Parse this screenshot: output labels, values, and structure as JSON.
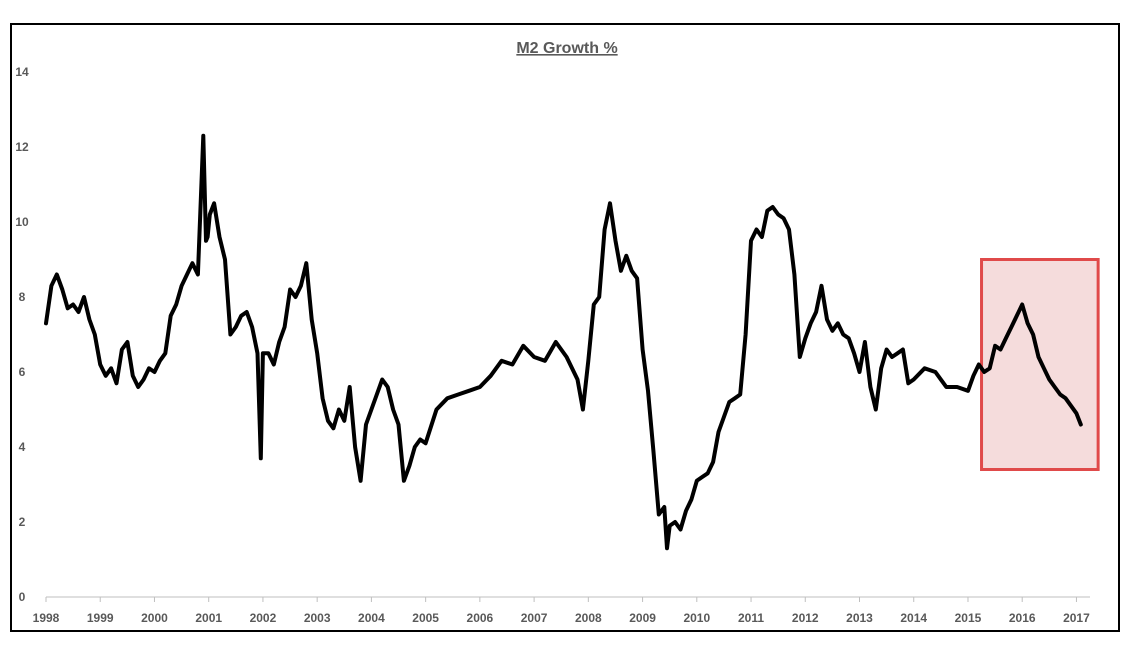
{
  "chart_data": {
    "type": "line",
    "title": "M2 Growth %",
    "xlabel": "",
    "ylabel": "",
    "xlim": [
      1998,
      2017.25
    ],
    "ylim": [
      0,
      14
    ],
    "y_ticks": [
      "0",
      "2",
      "4",
      "6",
      "8",
      "10",
      "12",
      "14"
    ],
    "x_ticks": [
      "1998",
      "1999",
      "2000",
      "2001",
      "2002",
      "2003",
      "2004",
      "2005",
      "2006",
      "2007",
      "2008",
      "2009",
      "2010",
      "2011",
      "2012",
      "2013",
      "2014",
      "2015",
      "2016",
      "2017"
    ],
    "grid": false,
    "legend": "none",
    "series": [
      {
        "color": "#000000",
        "x": [
          1998.0,
          1998.1,
          1998.2,
          1998.3,
          1998.4,
          1998.5,
          1998.6,
          1998.7,
          1998.8,
          1998.9,
          1999.0,
          1999.1,
          1999.2,
          1999.3,
          1999.4,
          1999.5,
          1999.6,
          1999.7,
          1999.8,
          1999.9,
          2000.0,
          2000.1,
          2000.2,
          2000.3,
          2000.4,
          2000.5,
          2000.6,
          2000.7,
          2000.8,
          2000.9,
          2000.95,
          2000.98,
          2001.02,
          2001.1,
          2001.2,
          2001.3,
          2001.4,
          2001.5,
          2001.6,
          2001.7,
          2001.8,
          2001.9,
          2001.96,
          2002.0,
          2002.1,
          2002.2,
          2002.3,
          2002.4,
          2002.5,
          2002.6,
          2002.7,
          2002.8,
          2002.9,
          2003.0,
          2003.1,
          2003.2,
          2003.3,
          2003.4,
          2003.5,
          2003.6,
          2003.7,
          2003.8,
          2003.9,
          2004.0,
          2004.1,
          2004.2,
          2004.3,
          2004.4,
          2004.5,
          2004.6,
          2004.7,
          2004.8,
          2004.9,
          2005.0,
          2005.2,
          2005.4,
          2005.6,
          2005.8,
          2006.0,
          2006.2,
          2006.4,
          2006.6,
          2006.8,
          2007.0,
          2007.2,
          2007.4,
          2007.6,
          2007.8,
          2007.9,
          2008.0,
          2008.1,
          2008.2,
          2008.3,
          2008.4,
          2008.5,
          2008.6,
          2008.7,
          2008.8,
          2008.9,
          2009.0,
          2009.1,
          2009.2,
          2009.3,
          2009.4,
          2009.45,
          2009.5,
          2009.6,
          2009.7,
          2009.8,
          2009.9,
          2010.0,
          2010.1,
          2010.2,
          2010.3,
          2010.4,
          2010.5,
          2010.6,
          2010.7,
          2010.8,
          2010.9,
          2011.0,
          2011.1,
          2011.2,
          2011.3,
          2011.4,
          2011.5,
          2011.6,
          2011.7,
          2011.8,
          2011.9,
          2012.0,
          2012.1,
          2012.2,
          2012.3,
          2012.4,
          2012.5,
          2012.6,
          2012.7,
          2012.8,
          2012.9,
          2013.0,
          2013.1,
          2013.2,
          2013.3,
          2013.4,
          2013.5,
          2013.6,
          2013.7,
          2013.8,
          2013.9,
          2014.0,
          2014.2,
          2014.4,
          2014.6,
          2014.8,
          2015.0,
          2015.1,
          2015.2,
          2015.3,
          2015.4,
          2015.5,
          2015.6,
          2015.7,
          2015.8,
          2015.9,
          2016.0,
          2016.1,
          2016.2,
          2016.3,
          2016.4,
          2016.5,
          2016.6,
          2016.7,
          2016.8,
          2016.9,
          2017.0,
          2017.08
        ],
        "values": [
          7.3,
          8.3,
          8.6,
          8.2,
          7.7,
          7.8,
          7.6,
          8.0,
          7.4,
          7.0,
          6.2,
          5.9,
          6.1,
          5.7,
          6.6,
          6.8,
          5.9,
          5.6,
          5.8,
          6.1,
          6.0,
          6.3,
          6.5,
          7.5,
          7.8,
          8.3,
          8.6,
          8.9,
          8.6,
          12.3,
          9.5,
          9.6,
          10.2,
          10.5,
          9.6,
          9.0,
          7.0,
          7.2,
          7.5,
          7.6,
          7.2,
          6.5,
          3.7,
          6.5,
          6.5,
          6.2,
          6.8,
          7.2,
          8.2,
          8.0,
          8.3,
          8.9,
          7.4,
          6.5,
          5.3,
          4.7,
          4.5,
          5.0,
          4.7,
          5.6,
          4.0,
          3.1,
          4.6,
          5.0,
          5.4,
          5.8,
          5.6,
          5.0,
          4.6,
          3.1,
          3.5,
          4.0,
          4.2,
          4.1,
          5.0,
          5.3,
          5.4,
          5.5,
          5.6,
          5.9,
          6.3,
          6.2,
          6.7,
          6.4,
          6.3,
          6.8,
          6.4,
          5.8,
          5.0,
          6.3,
          7.8,
          8.0,
          9.8,
          10.5,
          9.5,
          8.7,
          9.1,
          8.7,
          8.5,
          6.6,
          5.5,
          3.9,
          2.2,
          2.4,
          1.3,
          1.9,
          2.0,
          1.8,
          2.3,
          2.6,
          3.1,
          3.2,
          3.3,
          3.6,
          4.4,
          4.8,
          5.2,
          5.3,
          5.4,
          7.0,
          9.5,
          9.8,
          9.6,
          10.3,
          10.4,
          10.2,
          10.1,
          9.8,
          8.6,
          6.4,
          6.9,
          7.3,
          7.6,
          8.3,
          7.4,
          7.1,
          7.3,
          7.0,
          6.9,
          6.5,
          6.0,
          6.8,
          5.6,
          5.0,
          6.1,
          6.6,
          6.4,
          6.5,
          6.6,
          5.7,
          5.8,
          6.1,
          6.0,
          5.6,
          5.6,
          5.5,
          5.9,
          6.2,
          6.0,
          6.1,
          6.7,
          6.6,
          6.9,
          7.2,
          7.5,
          7.8,
          7.3,
          7.0,
          6.4,
          6.1,
          5.8,
          5.6,
          5.4,
          5.3,
          5.1,
          4.9,
          4.6
        ]
      }
    ],
    "annotations": [
      {
        "type": "highlight-box",
        "x0": 2015.25,
        "x1": 2017.4,
        "y0": 3.4,
        "y1": 9.0,
        "color": "#e04a4a",
        "fill": "#f2d3d3"
      }
    ]
  }
}
